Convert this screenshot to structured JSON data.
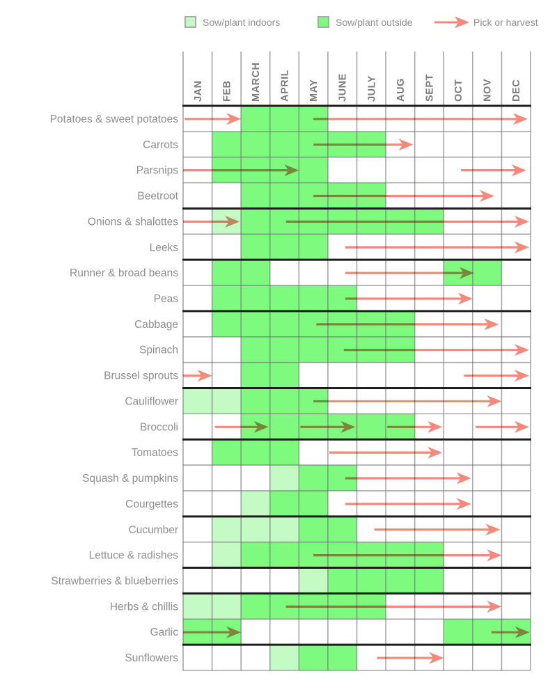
{
  "legend": {
    "sow_indoors": "Sow/plant indoors",
    "sow_outside": "Sow/plant outside",
    "harvest": "Pick or harvest"
  },
  "colors": {
    "sow_indoors": "#c4fbc4",
    "sow_outside": "#7efb7e",
    "arrow": "#f4897b",
    "grid_line_rgba": "rgba(105,105,115,0.6)",
    "separator": "#1d1d1d",
    "row_label_text": "#8e8e8e",
    "month_header_text": "#7c7c7c"
  },
  "chart_data": {
    "type": "gantt",
    "description": "Vegetable sowing and harvesting calendar; green cells = sow/plant months (light = indoors, dark = outside); arrows = pick or harvest period (month units 1=JAN..13=end of DEC)",
    "months": [
      "JAN",
      "FEB",
      "MARCH",
      "APRIL",
      "MAY",
      "JUNE",
      "JULY",
      "AUG",
      "SEPT",
      "OCT",
      "NOV",
      "DEC"
    ],
    "rows": [
      {
        "label": "Potatoes & sweet potatoes",
        "indoors": [],
        "outside": [
          3,
          4,
          5
        ],
        "arrows": [
          {
            "from": 1.05,
            "to": 3.0
          },
          {
            "from": 5.5,
            "to": 12.9
          }
        ],
        "thick_after": false
      },
      {
        "label": "Carrots",
        "indoors": [],
        "outside": [
          2,
          3,
          4,
          5,
          6,
          7
        ],
        "arrows": [
          {
            "from": 5.5,
            "to": 8.95
          }
        ],
        "thick_after": false
      },
      {
        "label": "Parsnips",
        "indoors": [],
        "outside": [
          2,
          3,
          4,
          5
        ],
        "arrows": [
          {
            "from": 1.0,
            "to": 5.0
          },
          {
            "from": 10.6,
            "to": 12.85
          }
        ],
        "thick_after": false
      },
      {
        "label": "Beetroot",
        "indoors": [],
        "outside": [
          3,
          4,
          5,
          6,
          7
        ],
        "arrows": [
          {
            "from": 5.5,
            "to": 11.75
          }
        ],
        "thick_after": true
      },
      {
        "label": "Onions & shalottes",
        "indoors": [
          2
        ],
        "outside": [
          3,
          4,
          5,
          6,
          7,
          8,
          9
        ],
        "arrows": [
          {
            "from": 1.0,
            "to": 2.95
          },
          {
            "from": 4.55,
            "to": 12.95
          }
        ],
        "thick_after": false
      },
      {
        "label": "Leeks",
        "indoors": [],
        "outside": [
          3,
          4,
          5
        ],
        "arrows": [
          {
            "from": 6.6,
            "to": 12.95
          }
        ],
        "thick_after": true
      },
      {
        "label": "Runner & broad beans",
        "indoors": [],
        "outside": [
          2,
          3,
          10,
          11
        ],
        "arrows": [
          {
            "from": 6.6,
            "to": 11.05
          }
        ],
        "thick_after": false
      },
      {
        "label": "Peas",
        "indoors": [],
        "outside": [
          2,
          3,
          4,
          5,
          6
        ],
        "arrows": [
          {
            "from": 6.6,
            "to": 11.0
          }
        ],
        "thick_after": true
      },
      {
        "label": "Cabbage",
        "indoors": [],
        "outside": [
          2,
          3,
          4,
          5,
          6,
          7,
          8
        ],
        "arrows": [
          {
            "from": 5.6,
            "to": 11.9
          }
        ],
        "thick_after": false
      },
      {
        "label": "Spinach",
        "indoors": [],
        "outside": [
          3,
          4,
          5,
          6,
          7,
          8
        ],
        "arrows": [
          {
            "from": 6.55,
            "to": 12.95
          }
        ],
        "thick_after": false
      },
      {
        "label": "Brussel sprouts",
        "indoors": [],
        "outside": [
          3,
          4
        ],
        "arrows": [
          {
            "from": 1.0,
            "to": 2.0
          },
          {
            "from": 10.7,
            "to": 12.95
          }
        ],
        "thick_after": true
      },
      {
        "label": "Cauliflower",
        "indoors": [
          1,
          2
        ],
        "outside": [
          3,
          4,
          5
        ],
        "arrows": [
          {
            "from": 5.5,
            "to": 12.0
          }
        ],
        "thick_after": false
      },
      {
        "label": "Broccoli",
        "indoors": [],
        "outside": [
          3,
          4,
          5,
          6,
          7,
          8
        ],
        "arrows": [
          {
            "from": 2.1,
            "to": 3.95
          },
          {
            "from": 5.05,
            "to": 6.95
          },
          {
            "from": 8.05,
            "to": 9.95
          },
          {
            "from": 11.1,
            "to": 12.95
          }
        ],
        "thick_after": true
      },
      {
        "label": "Tomatoes",
        "indoors": [],
        "outside": [
          2,
          3,
          4
        ],
        "arrows": [
          {
            "from": 6.05,
            "to": 9.95
          }
        ],
        "thick_after": false
      },
      {
        "label": "Squash & pumpkins",
        "indoors": [
          4
        ],
        "outside": [
          5,
          6
        ],
        "arrows": [
          {
            "from": 6.6,
            "to": 10.95
          }
        ],
        "thick_after": false
      },
      {
        "label": "Courgettes",
        "indoors": [
          3
        ],
        "outside": [
          4,
          5
        ],
        "arrows": [
          {
            "from": 6.6,
            "to": 10.95
          }
        ],
        "thick_after": true
      },
      {
        "label": "Cucumber",
        "indoors": [
          2,
          3,
          4
        ],
        "outside": [
          5,
          6
        ],
        "arrows": [
          {
            "from": 7.6,
            "to": 11.95
          }
        ],
        "thick_after": false
      },
      {
        "label": "Lettuce & radishes",
        "indoors": [
          2
        ],
        "outside": [
          3,
          4,
          5,
          6,
          7,
          8,
          9
        ],
        "arrows": [
          {
            "from": 5.5,
            "to": 12.0
          }
        ],
        "thick_after": true
      },
      {
        "label": "Strawberries & blueberries",
        "indoors": [
          5
        ],
        "outside": [
          6,
          7,
          8,
          9
        ],
        "arrows": [],
        "thick_after": true
      },
      {
        "label": "Herbs & chillis",
        "indoors": [
          1,
          2
        ],
        "outside": [
          3,
          4,
          5,
          6,
          7
        ],
        "arrows": [
          {
            "from": 4.55,
            "to": 12.0
          }
        ],
        "thick_after": false
      },
      {
        "label": "Garlic",
        "indoors": [],
        "outside": [
          1,
          2,
          10,
          11,
          12
        ],
        "arrows": [
          {
            "from": 1.0,
            "to": 3.0
          },
          {
            "from": 11.65,
            "to": 12.97
          }
        ],
        "thick_after": true
      },
      {
        "label": "Sunflowers",
        "indoors": [
          4
        ],
        "outside": [
          5,
          6
        ],
        "arrows": [
          {
            "from": 7.7,
            "to": 10.0
          }
        ],
        "thick_after": false
      }
    ]
  }
}
